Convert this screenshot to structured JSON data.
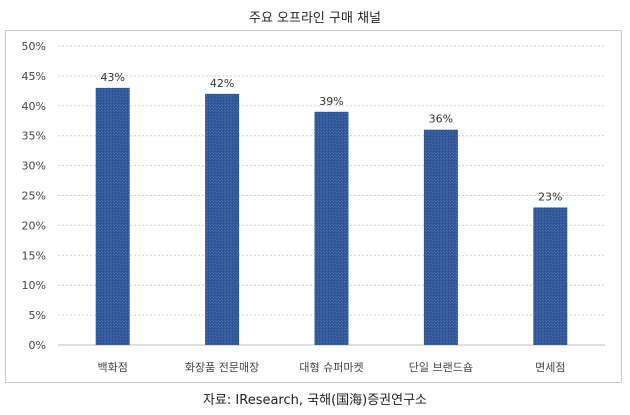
{
  "chart_data": {
    "type": "bar",
    "title": "주요 오프라인 구매 채널",
    "categories": [
      "백화점",
      "화장품 전문매장",
      "대형 슈퍼마켓",
      "단일 브랜드숍",
      "면세점"
    ],
    "values": [
      43,
      42,
      39,
      36,
      23
    ],
    "data_labels": [
      "43%",
      "42%",
      "39%",
      "36%",
      "23%"
    ],
    "ylim": [
      0,
      50
    ],
    "yticks": [
      "0%",
      "5%",
      "10%",
      "15%",
      "20%",
      "25%",
      "30%",
      "35%",
      "40%",
      "45%",
      "50%"
    ],
    "grid": true,
    "bar_color": "#2f5597",
    "source": "자료: IResearch, 국해(国海)증권연구소"
  }
}
